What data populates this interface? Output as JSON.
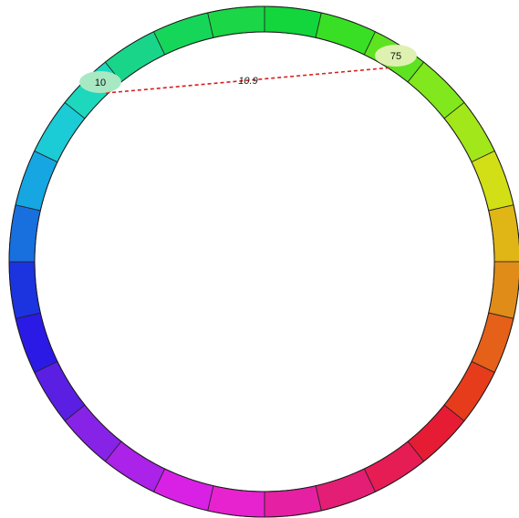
{
  "diagram": {
    "segment_colors": [
      "#12d63b",
      "#38df24",
      "#5de320",
      "#80e81c",
      "#a2e71a",
      "#d2df16",
      "#e0b516",
      "#e08c18",
      "#e56018",
      "#e63c1c",
      "#e61c34",
      "#e61c55",
      "#e31e74",
      "#e520a2",
      "#e722cf",
      "#d921e6",
      "#ab22e8",
      "#8723e6",
      "#5a1fe3",
      "#2b1ae5",
      "#1c33e0",
      "#1870df",
      "#16a6e2",
      "#1bcbd6",
      "#1dd8bc",
      "#19d58a",
      "#16d659",
      "#1bd646"
    ],
    "markers": [
      {
        "label": "10",
        "color": "#a8e9c4"
      },
      {
        "label": "75",
        "color": "#def1b0"
      }
    ],
    "distance": {
      "label": "10.9",
      "color": "#d81e1e"
    }
  }
}
